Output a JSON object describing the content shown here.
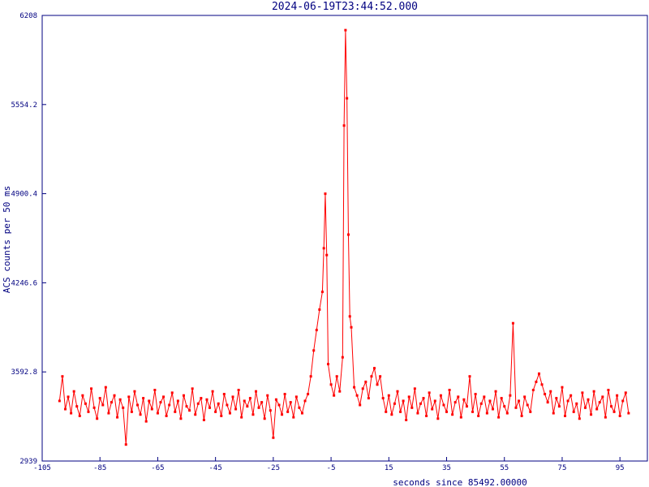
{
  "chart_data": {
    "type": "line",
    "title": "2024-06-19T23:44:52.000",
    "x_label": "seconds since 85492.00000",
    "y_label": "ACS counts per 50 ms",
    "color": "#ff0000",
    "xlim": [
      -105,
      104.5
    ],
    "ylim": [
      2939,
      6208
    ],
    "xticks": [
      -105,
      -85,
      -65,
      -45,
      -25,
      -5,
      15,
      35,
      55,
      75,
      95
    ],
    "yticks": [
      2939,
      3592.8,
      4246.6,
      4900.4,
      5554.2,
      6208
    ],
    "series": [
      {
        "name": "ACS",
        "color": "#ff0000",
        "x": [
          -99,
          -98,
          -97,
          -96,
          -95,
          -94,
          -93,
          -92,
          -91,
          -90,
          -89,
          -88,
          -87,
          -86,
          -85,
          -84,
          -83,
          -82,
          -81,
          -80,
          -79,
          -78,
          -77,
          -76,
          -75,
          -74,
          -73,
          -72,
          -71,
          -70,
          -69,
          -68,
          -67,
          -66,
          -65,
          -64,
          -63,
          -62,
          -61,
          -60,
          -59,
          -58,
          -57,
          -56,
          -55,
          -54,
          -53,
          -52,
          -51,
          -50,
          -49,
          -48,
          -47,
          -46,
          -45,
          -44,
          -43,
          -42,
          -41,
          -40,
          -39,
          -38,
          -37,
          -36,
          -35,
          -34,
          -33,
          -32,
          -31,
          -30,
          -29,
          -28,
          -27,
          -26,
          -25,
          -24,
          -23,
          -22,
          -21,
          -20,
          -19,
          -18,
          -17,
          -16,
          -15,
          -14,
          -13,
          -12,
          -11,
          -10,
          -9,
          -8,
          -7.5,
          -7,
          -6.5,
          -6,
          -5,
          -4,
          -3,
          -2,
          -1,
          -0.5,
          0,
          0.5,
          1,
          1.5,
          2,
          3,
          4,
          5,
          6,
          7,
          8,
          9,
          10,
          11,
          12,
          13,
          14,
          15,
          16,
          17,
          18,
          19,
          20,
          21,
          22,
          23,
          24,
          25,
          26,
          27,
          28,
          29,
          30,
          31,
          32,
          33,
          34,
          35,
          36,
          37,
          38,
          39,
          40,
          41,
          42,
          43,
          44,
          45,
          46,
          47,
          48,
          49,
          50,
          51,
          52,
          53,
          54,
          55,
          56,
          57,
          58,
          59,
          60,
          61,
          62,
          63,
          64,
          65,
          66,
          67,
          68,
          69,
          70,
          71,
          72,
          73,
          74,
          75,
          76,
          77,
          78,
          79,
          80,
          81,
          82,
          83,
          84,
          85,
          86,
          87,
          88,
          89,
          90,
          91,
          92,
          93,
          94,
          95,
          96,
          97,
          98
        ],
        "values": [
          3380,
          3560,
          3320,
          3410,
          3290,
          3450,
          3340,
          3270,
          3420,
          3360,
          3300,
          3470,
          3330,
          3250,
          3400,
          3350,
          3480,
          3290,
          3370,
          3420,
          3260,
          3390,
          3330,
          3060,
          3410,
          3300,
          3450,
          3350,
          3280,
          3400,
          3230,
          3380,
          3320,
          3460,
          3290,
          3370,
          3410,
          3270,
          3350,
          3440,
          3300,
          3380,
          3250,
          3420,
          3340,
          3310,
          3470,
          3280,
          3360,
          3400,
          3240,
          3390,
          3330,
          3450,
          3300,
          3360,
          3270,
          3430,
          3350,
          3290,
          3410,
          3320,
          3460,
          3260,
          3380,
          3340,
          3400,
          3280,
          3450,
          3330,
          3370,
          3250,
          3420,
          3310,
          3110,
          3390,
          3350,
          3280,
          3430,
          3300,
          3370,
          3260,
          3410,
          3330,
          3290,
          3380,
          3430,
          3560,
          3750,
          3900,
          4050,
          4180,
          4500,
          4900,
          4450,
          3650,
          3500,
          3420,
          3560,
          3450,
          3700,
          5400,
          6100,
          5600,
          4600,
          4000,
          3920,
          3480,
          3420,
          3350,
          3470,
          3520,
          3400,
          3560,
          3620,
          3500,
          3560,
          3400,
          3300,
          3420,
          3280,
          3360,
          3450,
          3300,
          3380,
          3240,
          3410,
          3330,
          3470,
          3290,
          3360,
          3400,
          3270,
          3440,
          3320,
          3380,
          3250,
          3420,
          3350,
          3300,
          3460,
          3280,
          3370,
          3410,
          3260,
          3390,
          3340,
          3560,
          3300,
          3430,
          3270,
          3360,
          3410,
          3290,
          3380,
          3320,
          3450,
          3260,
          3400,
          3340,
          3290,
          3420,
          3950,
          3330,
          3380,
          3270,
          3410,
          3350,
          3300,
          3460,
          3520,
          3580,
          3500,
          3430,
          3370,
          3450,
          3290,
          3400,
          3340,
          3480,
          3270,
          3380,
          3420,
          3300,
          3360,
          3250,
          3440,
          3330,
          3390,
          3280,
          3450,
          3320,
          3370,
          3410,
          3260,
          3460,
          3340,
          3300,
          3420,
          3270,
          3380,
          3440,
          3290
        ]
      }
    ]
  }
}
